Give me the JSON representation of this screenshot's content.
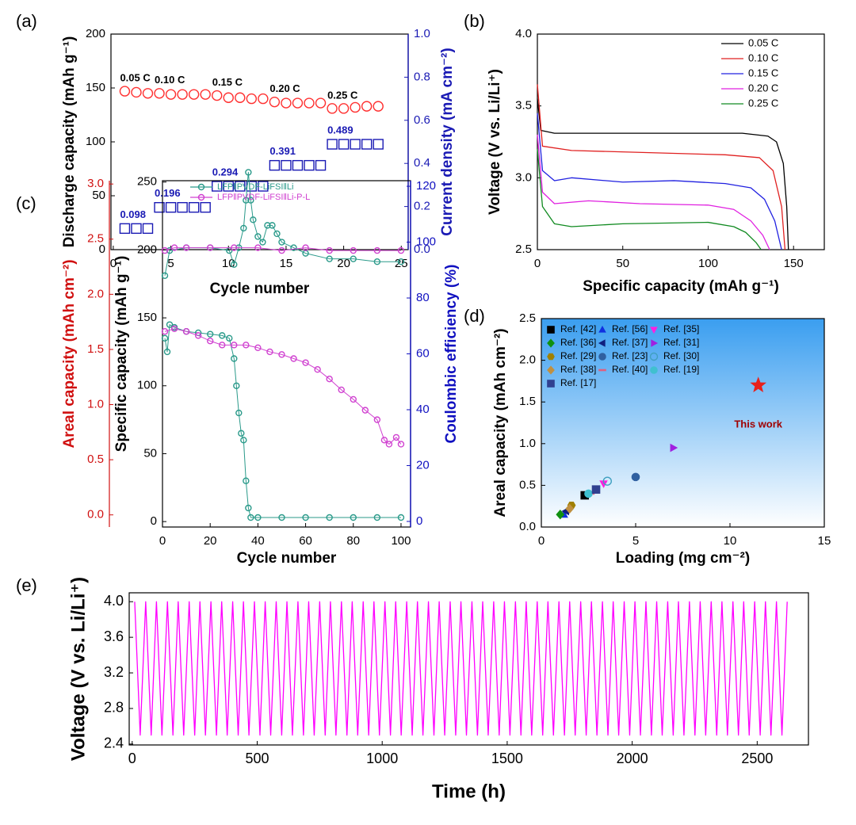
{
  "chart_data": [
    {
      "type": "scatter",
      "label": "(a)",
      "xlabel": "Cycle number",
      "ylabel": "Discharge capacity (mAh g⁻¹)",
      "y2label": "Current density (mA cm⁻²)",
      "xlim": [
        -0.2,
        25.6
      ],
      "xticks": [
        0,
        5,
        10,
        15,
        20,
        25
      ],
      "ylim": [
        0,
        200
      ],
      "yticks": [
        0,
        50,
        100,
        150,
        200
      ],
      "y2lim": [
        0,
        1
      ],
      "y2ticks": [
        {
          "value": 0,
          "label": "0.0"
        },
        0.2,
        0.4,
        0.6,
        0.8,
        {
          "value": 1,
          "label": "1.0"
        }
      ],
      "y2color": "#1a1ab4",
      "annotations": [
        "0.05 C",
        "0.10 C",
        "0.15 C",
        "0.20 C",
        "0.25 C"
      ],
      "x": [
        1,
        2,
        3,
        4,
        5,
        6,
        7,
        8,
        9,
        10,
        11,
        12,
        13,
        14,
        15,
        16,
        17,
        18,
        19,
        20,
        21,
        22,
        23
      ],
      "series": [
        {
          "name": "Discharge capacity",
          "color": "#ff3030",
          "marker": "circle-open",
          "values": [
            147,
            146,
            145,
            145,
            144,
            144,
            144,
            144,
            143,
            141,
            141,
            140,
            140,
            137,
            136,
            136,
            136,
            136,
            131,
            131,
            132,
            133,
            133
          ]
        },
        {
          "name": "Current density",
          "color": "#1a1ab4",
          "marker": "square-open",
          "axis": "y2",
          "values": [
            0.098,
            0.098,
            0.098,
            0.196,
            0.196,
            0.196,
            0.196,
            0.196,
            0.294,
            0.294,
            0.294,
            0.294,
            0.294,
            0.391,
            0.391,
            0.391,
            0.391,
            0.391,
            0.489,
            0.489,
            0.489,
            0.489,
            0.489
          ]
        }
      ]
    },
    {
      "type": "line",
      "label": "(b)",
      "xlabel": "Specific capacity (mAh g⁻¹)",
      "ylabel": "Voltage (V vs. Li/Li⁺)",
      "xlim": [
        0,
        168
      ],
      "xticks": [
        0,
        50,
        100,
        150
      ],
      "ylim": [
        2.5,
        4
      ],
      "yticks": [
        2.5,
        {
          "value": 3,
          "label": "3.0"
        },
        3.5,
        {
          "value": 4,
          "label": "4.0"
        }
      ],
      "legend": "upper right",
      "series": [
        {
          "name": "0.05 C",
          "color": "#000000",
          "x": [
            0,
            2,
            10,
            40,
            80,
            120,
            135,
            140,
            144,
            146,
            147
          ],
          "values": [
            3.55,
            3.33,
            3.31,
            3.31,
            3.31,
            3.31,
            3.29,
            3.25,
            3.1,
            2.8,
            2.5
          ]
        },
        {
          "name": "0.10 C",
          "color": "#e02020",
          "x": [
            0,
            3,
            20,
            80,
            110,
            130,
            138,
            143,
            145
          ],
          "values": [
            3.65,
            3.22,
            3.19,
            3.17,
            3.16,
            3.14,
            3.05,
            2.8,
            2.5
          ]
        },
        {
          "name": "0.15 C",
          "color": "#2020e0",
          "x": [
            0,
            3,
            10,
            20,
            50,
            80,
            110,
            125,
            133,
            139,
            143
          ],
          "values": [
            3.45,
            3.05,
            2.98,
            3.0,
            2.97,
            2.98,
            2.96,
            2.93,
            2.85,
            2.7,
            2.5
          ]
        },
        {
          "name": "0.20 C",
          "color": "#e020e0",
          "x": [
            0,
            3,
            10,
            30,
            60,
            100,
            115,
            125,
            132,
            136
          ],
          "values": [
            3.3,
            2.9,
            2.82,
            2.84,
            2.82,
            2.81,
            2.78,
            2.7,
            2.6,
            2.5
          ]
        },
        {
          "name": "0.25 C",
          "color": "#108a20",
          "x": [
            0,
            3,
            10,
            20,
            50,
            100,
            115,
            122,
            128,
            131
          ],
          "values": [
            3.2,
            2.8,
            2.68,
            2.66,
            2.68,
            2.69,
            2.66,
            2.62,
            2.55,
            2.5
          ]
        }
      ]
    },
    {
      "type": "scatter",
      "label": "(c)",
      "xlabel": "Cycle number",
      "ylabel": "Specific capacity (mAh g⁻¹)",
      "y2label": "Coulombic efficiency (%)",
      "y3label": "Areal capacity (mAh cm⁻²)",
      "xlim": [
        0,
        104
      ],
      "xticks": [
        0,
        20,
        40,
        60,
        80,
        100
      ],
      "ylim": [
        -4,
        251
      ],
      "yticks": [
        0,
        50,
        100,
        150,
        200,
        250
      ],
      "y2lim": [
        -2,
        122
      ],
      "y2ticks": [
        0,
        20,
        40,
        60,
        80,
        100,
        120
      ],
      "y2color": "#1010c0",
      "y3lim": [
        -0.11,
        3.03
      ],
      "y3ticks": [
        {
          "value": 0,
          "label": "0.0"
        },
        0.5,
        {
          "value": 1,
          "label": "1.0"
        },
        1.5,
        {
          "value": 2,
          "label": "2.0"
        },
        2.5,
        {
          "value": 3,
          "label": "3.0"
        }
      ],
      "y3color": "#d01010",
      "legend": "upper center",
      "series": [
        {
          "name": "LFP‖PVDF-LiFSI‖Li",
          "color": "#2a9a8a",
          "marker": "circle-open",
          "line": true,
          "x": [
            1,
            2,
            3,
            5,
            10,
            15,
            20,
            25,
            28,
            30,
            31,
            32,
            33,
            34,
            35,
            36,
            37,
            40,
            50,
            60,
            70,
            80,
            90,
            100
          ],
          "values": [
            135,
            125,
            145,
            143,
            140,
            139,
            138,
            137,
            135,
            120,
            100,
            80,
            65,
            60,
            30,
            10,
            3,
            3,
            3,
            3,
            3,
            3,
            3,
            3
          ]
        },
        {
          "name": "LFP‖PVDF-LiFSI‖Li-P-L",
          "color": "#d040d0",
          "marker": "circle-open",
          "line": true,
          "x": [
            1,
            5,
            10,
            15,
            20,
            25,
            30,
            35,
            40,
            45,
            50,
            55,
            60,
            65,
            70,
            75,
            80,
            85,
            90,
            93,
            95,
            98,
            100
          ],
          "values": [
            140,
            142,
            140,
            137,
            133,
            130,
            130,
            130,
            128,
            125,
            123,
            120,
            117,
            112,
            105,
            97,
            90,
            82,
            75,
            60,
            57,
            62,
            57
          ]
        },
        {
          "color": "#2a9a8a",
          "marker": "circle-open",
          "line": true,
          "axis": "y2",
          "x": [
            1,
            3,
            10,
            20,
            28,
            30,
            32,
            34,
            35,
            36,
            37,
            38,
            40,
            42,
            44,
            46,
            48,
            50,
            55,
            60,
            70,
            80,
            90,
            100
          ],
          "values": [
            88,
            97,
            98,
            98,
            97,
            92,
            98,
            105,
            115,
            125,
            115,
            108,
            102,
            100,
            106,
            106,
            103,
            100,
            98,
            96,
            94,
            94,
            93,
            93
          ]
        },
        {
          "color": "#d040d0",
          "marker": "circle-open",
          "line": true,
          "axis": "y2",
          "x": [
            1,
            5,
            10,
            20,
            30,
            40,
            50,
            60,
            70,
            80,
            90,
            100
          ],
          "values": [
            97,
            98,
            98,
            98,
            98,
            98,
            97,
            98,
            97,
            97,
            97,
            97
          ]
        }
      ]
    },
    {
      "type": "scatter",
      "label": "(d)",
      "xlabel": "Loading (mg cm⁻²)",
      "ylabel": "Areal capacity (mAh cm⁻²)",
      "xlim": [
        0,
        15
      ],
      "xticks": [
        0,
        5,
        10,
        15
      ],
      "ylim": [
        0,
        2.5
      ],
      "yticks": [
        {
          "value": 0,
          "label": "0.0"
        },
        0.5,
        {
          "value": 1,
          "label": "1.0"
        },
        1.5,
        {
          "value": 2,
          "label": "2.0"
        },
        2.5
      ],
      "background": [
        "#3a9ef0",
        "#ffffff"
      ],
      "legend": "upper left",
      "legend_columns": 3,
      "highlight": {
        "name": "This work",
        "x": 11.5,
        "value": 1.7,
        "color": "#e8201a",
        "marker": "star",
        "label_color": "#a00000"
      },
      "series": [
        {
          "name": "Ref. [42]",
          "color": "#000000",
          "marker": "square",
          "x": [
            2.3
          ],
          "values": [
            0.38
          ]
        },
        {
          "name": "Ref. [56]",
          "color": "#1030e0",
          "marker": "triangle",
          "x": [
            1.2
          ],
          "values": [
            0.15
          ]
        },
        {
          "name": "Ref. [35]",
          "color": "#ff20e0",
          "marker": "triangle-down",
          "x": [
            3.3
          ],
          "values": [
            0.52
          ]
        },
        {
          "name": "Ref. [36]",
          "color": "#109010",
          "marker": "diamond",
          "x": [
            1.0
          ],
          "values": [
            0.15
          ]
        },
        {
          "name": "Ref. [37]",
          "color": "#102080",
          "marker": "triangle-left",
          "x": [
            1.3
          ],
          "values": [
            0.19
          ]
        },
        {
          "name": "Ref. [31]",
          "color": "#a020e0",
          "marker": "triangle-right",
          "x": [
            7.0
          ],
          "values": [
            0.95
          ]
        },
        {
          "name": "Ref. [29]",
          "color": "#a08000",
          "marker": "hexagon",
          "x": [
            1.6
          ],
          "values": [
            0.26
          ]
        },
        {
          "name": "Ref. [23]",
          "color": "#3060a0",
          "marker": "circle",
          "x": [
            5.0
          ],
          "values": [
            0.6
          ]
        },
        {
          "name": "Ref. [30]",
          "color": "#40a0c0",
          "marker": "circle-open",
          "x": [
            3.5
          ],
          "values": [
            0.55
          ]
        },
        {
          "name": "Ref. [38]",
          "color": "#c09040",
          "marker": "diamond",
          "x": [
            1.5
          ],
          "values": [
            0.22
          ]
        },
        {
          "name": "Ref. [40]",
          "color": "#e06080",
          "marker": "dash",
          "x": [
            2.6
          ],
          "values": [
            0.4
          ]
        },
        {
          "name": "Ref. [19]",
          "color": "#40c0d0",
          "marker": "circle",
          "x": [
            2.5
          ],
          "values": [
            0.4
          ]
        },
        {
          "name": "Ref. [17]",
          "color": "#304090",
          "marker": "square",
          "x": [
            2.9
          ],
          "values": [
            0.45
          ]
        }
      ]
    },
    {
      "type": "line",
      "label": "(e)",
      "xlabel": "Time (h)",
      "ylabel": "Voltage (V vs. Li/Li⁺)",
      "xlim": [
        -12,
        2705
      ],
      "xticks": [
        0,
        500,
        1000,
        1500,
        2000,
        2500
      ],
      "ylim": [
        2.39,
        4.1
      ],
      "yticks": [
        2.4,
        2.8,
        3.2,
        3.6,
        {
          "value": 4,
          "label": "4.0"
        }
      ],
      "series": [
        {
          "name": "Voltage",
          "color": "#ff00ff",
          "x": [
            10,
            32,
            54,
            76,
            97,
            119,
            141,
            163,
            184,
            206,
            228,
            250,
            271,
            293,
            315,
            337,
            358,
            380,
            402,
            424,
            445,
            467,
            489,
            511,
            532,
            554,
            576,
            598,
            619,
            641,
            663,
            685,
            706,
            728,
            750,
            772,
            793,
            815,
            837,
            859,
            880,
            902,
            924,
            946,
            967,
            989,
            1011,
            1033,
            1054,
            1076,
            1098,
            1120,
            1141,
            1163,
            1185,
            1207,
            1228,
            1250,
            1272,
            1294,
            1315,
            1337,
            1359,
            1381,
            1402,
            1424,
            1446,
            1468,
            1489,
            1511,
            1533,
            1555,
            1576,
            1598,
            1620,
            1642,
            1663,
            1685,
            1707,
            1729,
            1750,
            1772,
            1794,
            1816,
            1837,
            1859,
            1881,
            1903,
            1924,
            1946,
            1968,
            1990,
            2011,
            2033,
            2055,
            2077,
            2098,
            2120,
            2142,
            2164,
            2185,
            2207,
            2229,
            2251,
            2272,
            2294,
            2316,
            2338,
            2359,
            2381,
            2403,
            2425,
            2446,
            2468,
            2490,
            2512,
            2533,
            2555,
            2577,
            2599,
            2620
          ],
          "values": [
            4,
            2.5,
            4,
            2.5,
            4,
            2.5,
            4,
            2.5,
            4,
            2.5,
            4,
            2.5,
            4,
            2.5,
            4,
            2.5,
            4,
            2.5,
            4,
            2.5,
            4,
            2.5,
            4,
            2.5,
            4,
            2.5,
            4,
            2.5,
            4,
            2.5,
            4,
            2.5,
            4,
            2.5,
            4,
            2.5,
            4,
            2.5,
            4,
            2.5,
            4,
            2.5,
            4,
            2.5,
            4,
            2.5,
            4,
            2.5,
            4,
            2.5,
            4,
            2.5,
            4,
            2.5,
            4,
            2.5,
            4,
            2.5,
            4,
            2.5,
            4,
            2.5,
            4,
            2.5,
            4,
            2.5,
            4,
            2.5,
            4,
            2.5,
            4,
            2.5,
            4,
            2.5,
            4,
            2.5,
            4,
            2.5,
            4,
            2.5,
            4,
            2.5,
            4,
            2.5,
            4,
            2.5,
            4,
            2.5,
            4,
            2.5,
            4,
            2.5,
            4,
            2.5,
            4,
            2.5,
            4,
            2.5,
            4,
            2.5,
            4,
            2.5,
            4,
            2.5,
            4,
            2.5,
            4,
            2.5,
            4,
            2.5,
            4,
            2.5,
            4,
            2.5,
            4,
            2.5,
            4,
            2.5,
            4,
            2.5,
            4
          ]
        }
      ]
    }
  ]
}
